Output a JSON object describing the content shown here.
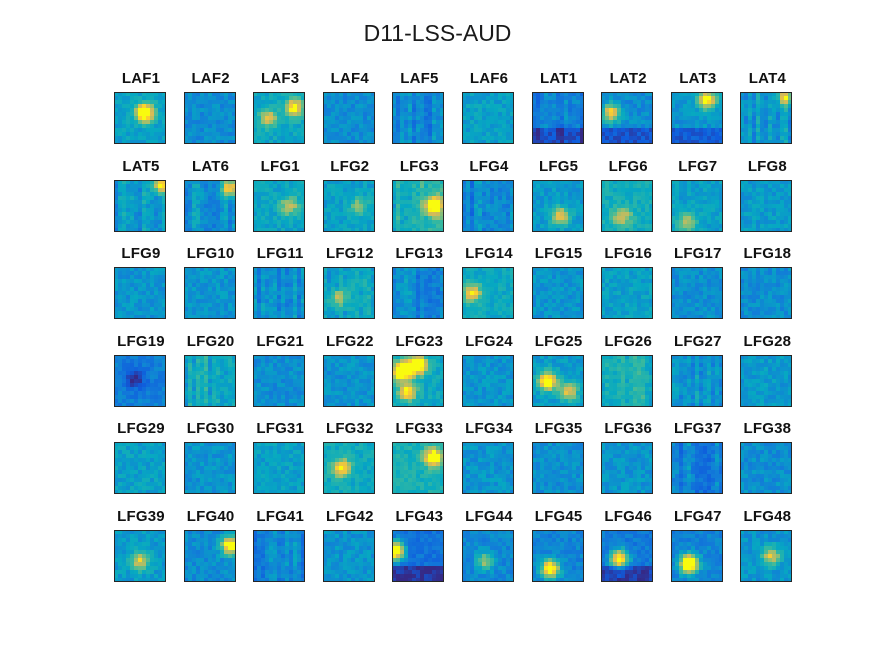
{
  "chart_data": {
    "type": "heatmap",
    "title": "D11-LSS-AUD",
    "colormap": "parula",
    "panels": [
      {
        "label": "LAF1",
        "mean": 0.42,
        "hot": [
          [
            0.6,
            0.4,
            0.9
          ]
        ]
      },
      {
        "label": "LAF2",
        "mean": 0.35
      },
      {
        "label": "LAF3",
        "mean": 0.45,
        "hot": [
          [
            0.8,
            0.3,
            0.6
          ],
          [
            0.3,
            0.5,
            0.4
          ]
        ]
      },
      {
        "label": "LAF4",
        "mean": 0.35
      },
      {
        "label": "LAF5",
        "mean": 0.33,
        "stripes": true
      },
      {
        "label": "LAF6",
        "mean": 0.42
      },
      {
        "label": "LAT1",
        "mean": 0.3,
        "dark_bottom": true,
        "stripes": true
      },
      {
        "label": "LAT2",
        "mean": 0.35,
        "dark_bottom": true,
        "hot": [
          [
            0.2,
            0.4,
            0.6
          ]
        ]
      },
      {
        "label": "LAT3",
        "mean": 0.38,
        "dark_bottom": true,
        "hot": [
          [
            0.7,
            0.15,
            0.7
          ]
        ]
      },
      {
        "label": "LAT4",
        "mean": 0.4,
        "stripes": true,
        "hot": [
          [
            0.9,
            0.1,
            0.5
          ]
        ]
      },
      {
        "label": "LAT5",
        "mean": 0.4,
        "stripes": true,
        "hot": [
          [
            0.9,
            0.1,
            0.6
          ]
        ]
      },
      {
        "label": "LAT6",
        "mean": 0.36,
        "stripes": true,
        "hot": [
          [
            0.9,
            0.15,
            0.6
          ]
        ]
      },
      {
        "label": "LFG1",
        "mean": 0.44,
        "hot": [
          [
            0.7,
            0.5,
            0.4
          ]
        ]
      },
      {
        "label": "LFG2",
        "mean": 0.42,
        "hot": [
          [
            0.7,
            0.5,
            0.3
          ]
        ]
      },
      {
        "label": "LFG3",
        "mean": 0.5,
        "stripes": true,
        "hot": [
          [
            0.8,
            0.5,
            0.7
          ]
        ]
      },
      {
        "label": "LFG4",
        "mean": 0.33,
        "stripes": true
      },
      {
        "label": "LFG5",
        "mean": 0.4,
        "hot": [
          [
            0.55,
            0.7,
            0.5
          ]
        ]
      },
      {
        "label": "LFG6",
        "mean": 0.48,
        "hot": [
          [
            0.4,
            0.7,
            0.4
          ]
        ]
      },
      {
        "label": "LFG7",
        "mean": 0.42,
        "hot": [
          [
            0.3,
            0.8,
            0.4
          ]
        ]
      },
      {
        "label": "LFG8",
        "mean": 0.4
      },
      {
        "label": "LFG9",
        "mean": 0.38
      },
      {
        "label": "LFG10",
        "mean": 0.38
      },
      {
        "label": "LFG11",
        "mean": 0.36,
        "stripes": true
      },
      {
        "label": "LFG12",
        "mean": 0.42,
        "stripes": true,
        "hot": [
          [
            0.3,
            0.6,
            0.4
          ]
        ]
      },
      {
        "label": "LFG13",
        "mean": 0.32,
        "stripes": true
      },
      {
        "label": "LFG14",
        "mean": 0.46,
        "hot": [
          [
            0.2,
            0.5,
            0.5
          ]
        ]
      },
      {
        "label": "LFG15",
        "mean": 0.38
      },
      {
        "label": "LFG16",
        "mean": 0.42
      },
      {
        "label": "LFG17",
        "mean": 0.36
      },
      {
        "label": "LFG18",
        "mean": 0.36
      },
      {
        "label": "LFG19",
        "mean": 0.3,
        "dark_center": true
      },
      {
        "label": "LFG20",
        "mean": 0.46,
        "stripes": true
      },
      {
        "label": "LFG21",
        "mean": 0.36
      },
      {
        "label": "LFG22",
        "mean": 0.37
      },
      {
        "label": "LFG23",
        "mean": 0.45,
        "hot": [
          [
            0.2,
            0.3,
            1.0
          ],
          [
            0.5,
            0.2,
            0.8
          ],
          [
            0.3,
            0.7,
            0.6
          ]
        ]
      },
      {
        "label": "LFG24",
        "mean": 0.38
      },
      {
        "label": "LFG25",
        "mean": 0.4,
        "hot": [
          [
            0.3,
            0.5,
            0.8
          ],
          [
            0.7,
            0.7,
            0.5
          ]
        ]
      },
      {
        "label": "LFG26",
        "mean": 0.5,
        "stripes": true
      },
      {
        "label": "LFG27",
        "mean": 0.38,
        "stripes": true
      },
      {
        "label": "LFG28",
        "mean": 0.4
      },
      {
        "label": "LFG29",
        "mean": 0.42
      },
      {
        "label": "LFG30",
        "mean": 0.38
      },
      {
        "label": "LFG31",
        "mean": 0.42
      },
      {
        "label": "LFG32",
        "mean": 0.46,
        "hot": [
          [
            0.35,
            0.5,
            0.6
          ]
        ]
      },
      {
        "label": "LFG33",
        "mean": 0.5,
        "hot": [
          [
            0.8,
            0.3,
            0.7
          ]
        ]
      },
      {
        "label": "LFG34",
        "mean": 0.38
      },
      {
        "label": "LFG35",
        "mean": 0.36
      },
      {
        "label": "LFG36",
        "mean": 0.38
      },
      {
        "label": "LFG37",
        "mean": 0.32,
        "stripes": true
      },
      {
        "label": "LFG38",
        "mean": 0.36
      },
      {
        "label": "LFG39",
        "mean": 0.4,
        "hot": [
          [
            0.5,
            0.6,
            0.5
          ]
        ]
      },
      {
        "label": "LFG40",
        "mean": 0.35,
        "hot": [
          [
            0.9,
            0.3,
            0.8
          ]
        ]
      },
      {
        "label": "LFG41",
        "mean": 0.32,
        "stripes": true
      },
      {
        "label": "LFG42",
        "mean": 0.38
      },
      {
        "label": "LFG43",
        "mean": 0.25,
        "hot": [
          [
            0.05,
            0.4,
            1.0
          ]
        ],
        "dark_bottom": true
      },
      {
        "label": "LFG44",
        "mean": 0.33,
        "hot": [
          [
            0.45,
            0.6,
            0.4
          ]
        ]
      },
      {
        "label": "LFG45",
        "mean": 0.32,
        "hot": [
          [
            0.35,
            0.75,
            0.8
          ]
        ]
      },
      {
        "label": "LFG46",
        "mean": 0.28,
        "dark_bottom": true,
        "hot": [
          [
            0.35,
            0.55,
            0.8
          ]
        ]
      },
      {
        "label": "LFG47",
        "mean": 0.32,
        "hot": [
          [
            0.35,
            0.65,
            1.0
          ]
        ]
      },
      {
        "label": "LFG48",
        "mean": 0.38,
        "hot": [
          [
            0.6,
            0.5,
            0.5
          ]
        ]
      }
    ]
  }
}
